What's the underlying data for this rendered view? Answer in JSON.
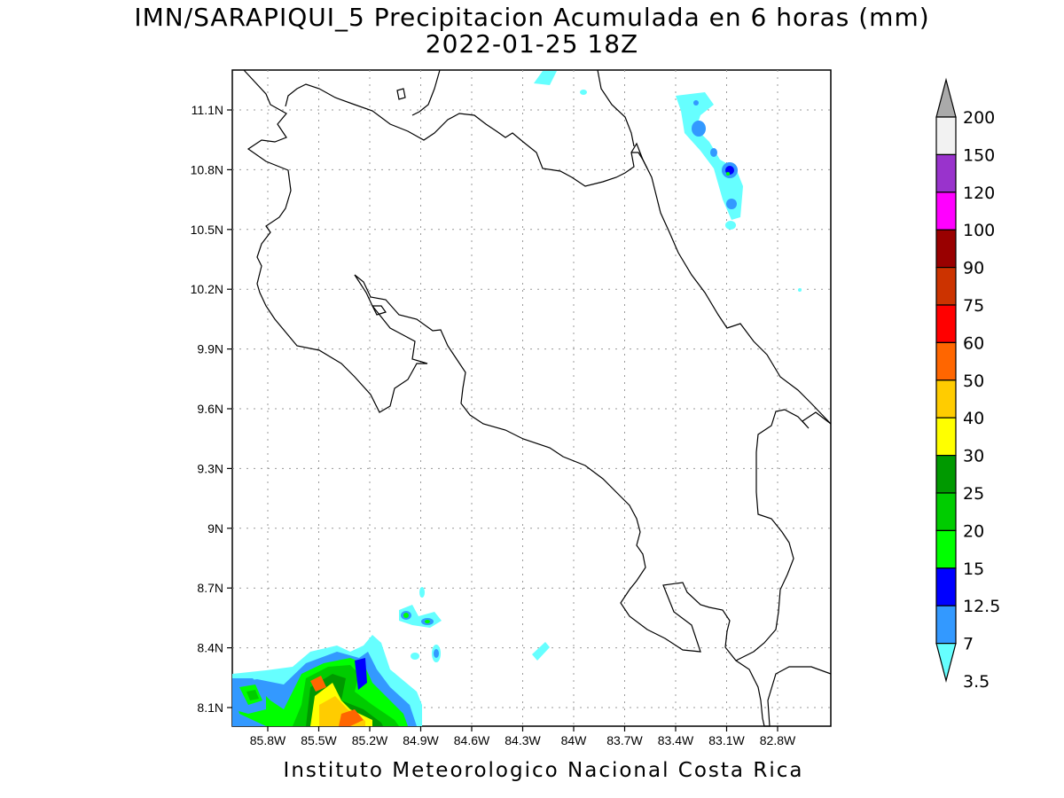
{
  "title": {
    "line1": "IMN/SARAPIQUI_5 Precipitacion Acumulada en 6 horas (mm)",
    "line2": "2022-01-25 18Z"
  },
  "footer": "Instituto Meteorologico Nacional Costa Rica",
  "map": {
    "lat_labels": [
      "11.1N",
      "10.8N",
      "10.5N",
      "10.2N",
      "9.9N",
      "9.6N",
      "9.3N",
      "9N",
      "8.7N",
      "8.4N",
      "8.1N"
    ],
    "lon_labels": [
      "85.8W",
      "85.5W",
      "85.2W",
      "84.9W",
      "84.6W",
      "84.3W",
      "84W",
      "83.7W",
      "83.4W",
      "83.1W",
      "82.8W"
    ],
    "grid": true,
    "region": "Costa Rica"
  },
  "colorbar": {
    "labels": [
      "3.5",
      "7",
      "12.5",
      "15",
      "20",
      "25",
      "30",
      "40",
      "50",
      "60",
      "75",
      "90",
      "100",
      "120",
      "150",
      "200"
    ],
    "colors": [
      "#66ffff",
      "#3399ff",
      "#0000ff",
      "#00ff00",
      "#00cc00",
      "#009900",
      "#ffff00",
      "#ffcc00",
      "#ff6600",
      "#ff0000",
      "#cc3300",
      "#990000",
      "#ff00ff",
      "#9933cc",
      "#f2f2f2",
      "#aaaaaa"
    ]
  }
}
